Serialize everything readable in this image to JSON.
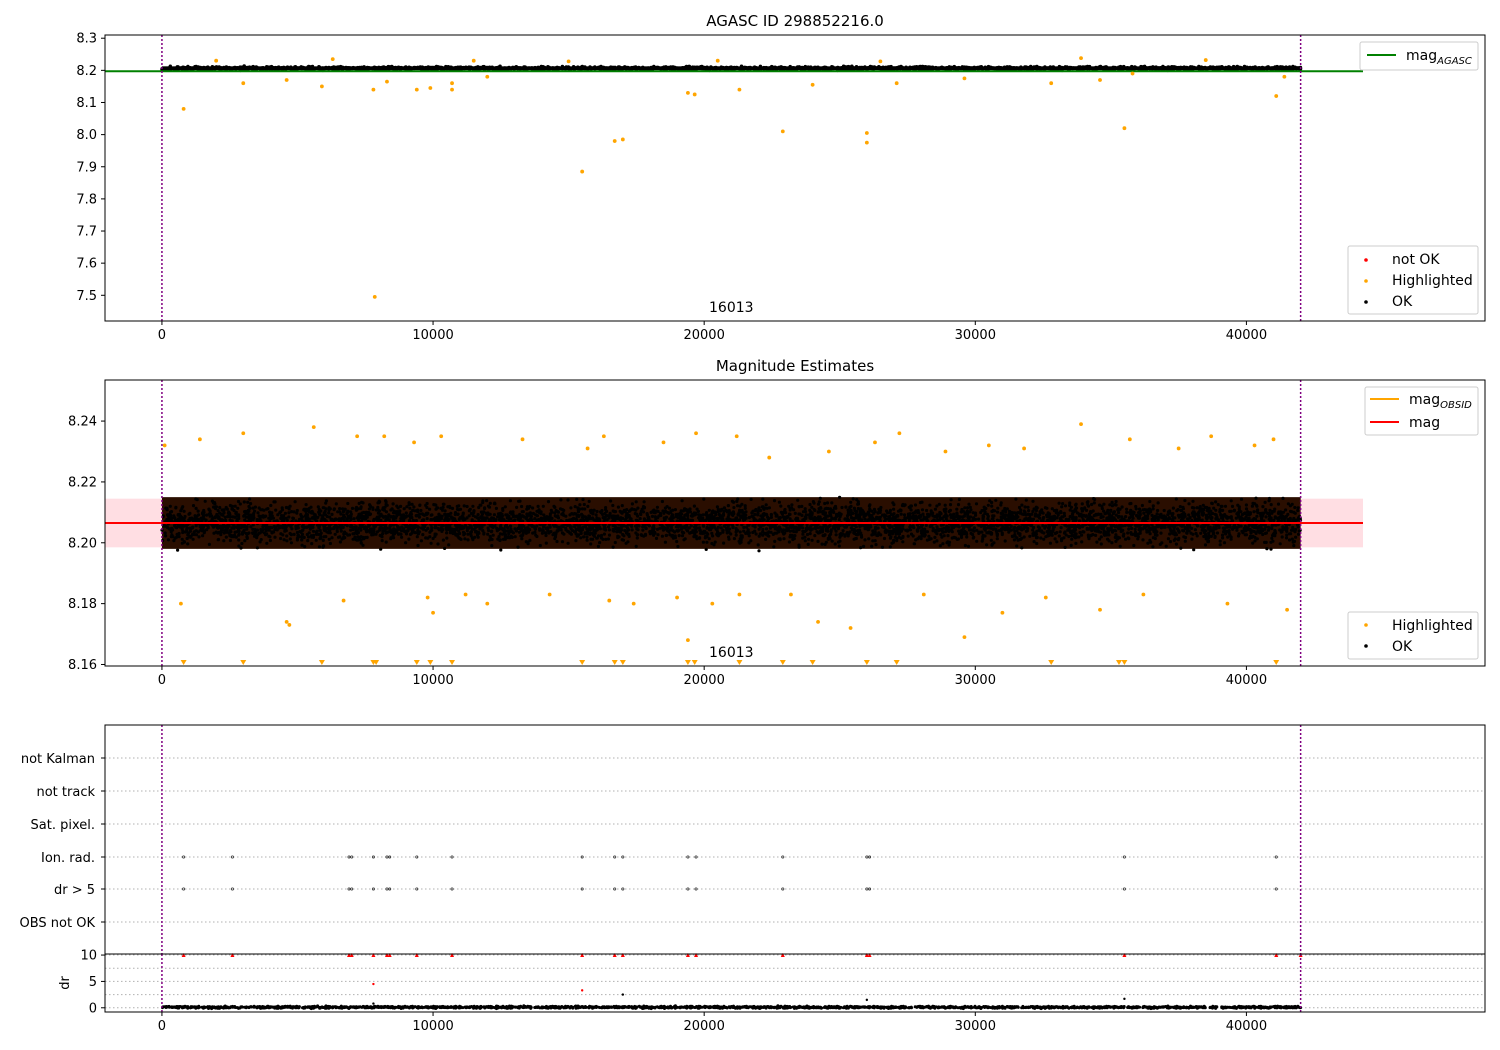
{
  "colors": {
    "ok": "#000000",
    "highlighted": "#ffa500",
    "not_ok": "#ff0000",
    "mag_agasc": "#008000",
    "mag_obsid": "#ffa500",
    "mag": "#ff0000",
    "band": "#ffb6c1",
    "obs_boundary": "#800080",
    "grid": "#b0b0b0"
  },
  "chart_data": [
    {
      "type": "scatter",
      "title": "AGASC ID 298852216.0",
      "xlim": [
        -2100,
        48800
      ],
      "ylim": [
        7.42,
        8.31
      ],
      "xticks": [
        0,
        10000,
        20000,
        30000,
        40000
      ],
      "yticks": [
        7.5,
        7.6,
        7.7,
        7.8,
        7.9,
        8.0,
        8.1,
        8.2,
        8.3
      ],
      "obs_boundaries": [
        0,
        42000
      ],
      "obsid_label": {
        "text": "16013",
        "x": 21000
      },
      "lines": [
        {
          "name": "mag_AGASC",
          "y": 8.197,
          "x_range": [
            -2100,
            44300
          ],
          "color": "#008000"
        }
      ],
      "ok_band": {
        "x_range": [
          0,
          42000
        ],
        "center": 8.2065,
        "spread": 0.0075
      },
      "highlighted_points": [
        {
          "x": 800,
          "y": 8.08
        },
        {
          "x": 3000,
          "y": 8.16
        },
        {
          "x": 4600,
          "y": 8.17
        },
        {
          "x": 5900,
          "y": 8.15
        },
        {
          "x": 7800,
          "y": 8.14
        },
        {
          "x": 7850,
          "y": 7.495
        },
        {
          "x": 8300,
          "y": 8.165
        },
        {
          "x": 9400,
          "y": 8.14
        },
        {
          "x": 9900,
          "y": 8.145
        },
        {
          "x": 10700,
          "y": 8.14
        },
        {
          "x": 10700,
          "y": 8.16
        },
        {
          "x": 12000,
          "y": 8.18
        },
        {
          "x": 15500,
          "y": 7.885
        },
        {
          "x": 16700,
          "y": 7.98
        },
        {
          "x": 17000,
          "y": 7.985
        },
        {
          "x": 19400,
          "y": 8.13
        },
        {
          "x": 19650,
          "y": 8.125
        },
        {
          "x": 21300,
          "y": 8.14
        },
        {
          "x": 22900,
          "y": 8.01
        },
        {
          "x": 24000,
          "y": 8.155
        },
        {
          "x": 26000,
          "y": 8.005
        },
        {
          "x": 26000,
          "y": 7.975
        },
        {
          "x": 27100,
          "y": 8.16
        },
        {
          "x": 29600,
          "y": 8.175
        },
        {
          "x": 32800,
          "y": 8.16
        },
        {
          "x": 34600,
          "y": 8.17
        },
        {
          "x": 35500,
          "y": 8.02
        },
        {
          "x": 35800,
          "y": 8.19
        },
        {
          "x": 41100,
          "y": 8.12
        },
        {
          "x": 41400,
          "y": 8.18
        },
        {
          "x": 2000,
          "y": 8.23
        },
        {
          "x": 6300,
          "y": 8.235
        },
        {
          "x": 11500,
          "y": 8.23
        },
        {
          "x": 15000,
          "y": 8.228
        },
        {
          "x": 20500,
          "y": 8.23
        },
        {
          "x": 26500,
          "y": 8.228
        },
        {
          "x": 33900,
          "y": 8.238
        },
        {
          "x": 38500,
          "y": 8.232
        }
      ],
      "not_ok_points": [],
      "legends": [
        {
          "position": "upper-right",
          "entries": [
            {
              "label": "mag",
              "sub": "AGASC",
              "kind": "line",
              "color": "#008000"
            }
          ]
        },
        {
          "position": "lower-right",
          "entries": [
            {
              "label": "not OK",
              "kind": "dot",
              "color": "#ff0000"
            },
            {
              "label": "Highlighted",
              "kind": "dot",
              "color": "#ffa500"
            },
            {
              "label": "OK",
              "kind": "dot",
              "color": "#000000"
            }
          ]
        }
      ]
    },
    {
      "type": "scatter",
      "title": "Magnitude Estimates",
      "xlim": [
        -2100,
        48800
      ],
      "ylim": [
        8.1595,
        8.2535
      ],
      "xticks": [
        0,
        10000,
        20000,
        30000,
        40000
      ],
      "yticks": [
        8.16,
        8.18,
        8.2,
        8.22,
        8.24
      ],
      "obs_boundaries": [
        0,
        42000
      ],
      "obsid_label": {
        "text": "16013",
        "x": 21000
      },
      "lines": [
        {
          "name": "mag",
          "y": 8.2065,
          "x_range": [
            -2100,
            44300
          ],
          "color": "#ff0000"
        }
      ],
      "shaded_band": {
        "y_range": [
          8.1985,
          8.2145
        ],
        "x_range": [
          -2100,
          44300
        ]
      },
      "ok_band": {
        "x_range": [
          0,
          42000
        ],
        "center": 8.2065,
        "spread": 0.0095
      },
      "highlighted_points": [
        {
          "x": 100,
          "y": 8.232
        },
        {
          "x": 700,
          "y": 8.18
        },
        {
          "x": 1400,
          "y": 8.234
        },
        {
          "x": 3000,
          "y": 8.236
        },
        {
          "x": 4600,
          "y": 8.174
        },
        {
          "x": 4700,
          "y": 8.173
        },
        {
          "x": 5600,
          "y": 8.238
        },
        {
          "x": 6700,
          "y": 8.181
        },
        {
          "x": 7200,
          "y": 8.235
        },
        {
          "x": 8200,
          "y": 8.235
        },
        {
          "x": 9300,
          "y": 8.233
        },
        {
          "x": 9800,
          "y": 8.182
        },
        {
          "x": 10000,
          "y": 8.177
        },
        {
          "x": 10300,
          "y": 8.235
        },
        {
          "x": 11200,
          "y": 8.183
        },
        {
          "x": 12000,
          "y": 8.18
        },
        {
          "x": 13300,
          "y": 8.234
        },
        {
          "x": 14300,
          "y": 8.183
        },
        {
          "x": 15700,
          "y": 8.231
        },
        {
          "x": 16500,
          "y": 8.181
        },
        {
          "x": 16300,
          "y": 8.235
        },
        {
          "x": 17400,
          "y": 8.18
        },
        {
          "x": 18500,
          "y": 8.233
        },
        {
          "x": 19000,
          "y": 8.182
        },
        {
          "x": 19400,
          "y": 8.168
        },
        {
          "x": 19700,
          "y": 8.236
        },
        {
          "x": 20300,
          "y": 8.18
        },
        {
          "x": 21200,
          "y": 8.235
        },
        {
          "x": 21300,
          "y": 8.183
        },
        {
          "x": 22400,
          "y": 8.228
        },
        {
          "x": 23200,
          "y": 8.183
        },
        {
          "x": 24200,
          "y": 8.174
        },
        {
          "x": 24600,
          "y": 8.23
        },
        {
          "x": 25400,
          "y": 8.172
        },
        {
          "x": 26300,
          "y": 8.233
        },
        {
          "x": 27200,
          "y": 8.236
        },
        {
          "x": 28100,
          "y": 8.183
        },
        {
          "x": 28900,
          "y": 8.23
        },
        {
          "x": 29600,
          "y": 8.169
        },
        {
          "x": 30500,
          "y": 8.232
        },
        {
          "x": 31000,
          "y": 8.177
        },
        {
          "x": 31800,
          "y": 8.231
        },
        {
          "x": 32600,
          "y": 8.182
        },
        {
          "x": 33900,
          "y": 8.239
        },
        {
          "x": 34600,
          "y": 8.178
        },
        {
          "x": 35700,
          "y": 8.234
        },
        {
          "x": 36200,
          "y": 8.183
        },
        {
          "x": 37500,
          "y": 8.231
        },
        {
          "x": 38700,
          "y": 8.235
        },
        {
          "x": 39300,
          "y": 8.18
        },
        {
          "x": 40300,
          "y": 8.232
        },
        {
          "x": 41000,
          "y": 8.234
        },
        {
          "x": 41500,
          "y": 8.178
        }
      ],
      "clipped_markers_x": [
        800,
        3000,
        5900,
        7800,
        7900,
        9400,
        9900,
        10700,
        15500,
        16700,
        17000,
        19400,
        19650,
        21300,
        22900,
        24000,
        26000,
        27100,
        32800,
        35300,
        35500,
        41100
      ],
      "legends": [
        {
          "position": "upper-right",
          "entries": [
            {
              "label": "mag",
              "sub": "OBSID",
              "kind": "line",
              "color": "#ffa500"
            },
            {
              "label": "mag",
              "kind": "line",
              "color": "#ff0000"
            }
          ]
        },
        {
          "position": "lower-right",
          "entries": [
            {
              "label": "Highlighted",
              "kind": "dot",
              "color": "#ffa500"
            },
            {
              "label": "OK",
              "kind": "dot",
              "color": "#000000"
            }
          ]
        }
      ]
    },
    {
      "type": "scatter",
      "title": "",
      "xlim": [
        -2100,
        48800
      ],
      "categories": [
        "not Kalman",
        "not track",
        "Sat. pixel.",
        "Ion. rad.",
        "dr > 5",
        "OBS not OK"
      ],
      "obs_boundaries": [
        0,
        42000
      ],
      "flag_points": {
        "Ion. rad.": [
          800,
          2600,
          6900,
          7000,
          7800,
          8300,
          8400,
          9400,
          10700,
          15500,
          16700,
          17000,
          19400,
          19700,
          22900,
          26000,
          26100,
          35500,
          41100
        ],
        "dr > 5": [
          800,
          2600,
          6900,
          7000,
          7800,
          8300,
          8400,
          9400,
          10700,
          15500,
          16700,
          17000,
          19400,
          19700,
          22900,
          26000,
          26100,
          35500,
          41100
        ]
      }
    },
    {
      "type": "scatter",
      "title": "",
      "ylabel": "dr",
      "xlim": [
        -2100,
        48800
      ],
      "ylim": [
        -0.8,
        10.2
      ],
      "xticks": [
        0,
        10000,
        20000,
        30000,
        40000
      ],
      "yticks": [
        0,
        5,
        10
      ],
      "obs_boundaries": [
        0,
        42000
      ],
      "capped_points": [
        {
          "x": 800,
          "y": 10
        },
        {
          "x": 2600,
          "y": 10
        },
        {
          "x": 6900,
          "y": 10
        },
        {
          "x": 7000,
          "y": 10
        },
        {
          "x": 7800,
          "y": 10
        },
        {
          "x": 8300,
          "y": 10
        },
        {
          "x": 8400,
          "y": 10
        },
        {
          "x": 9400,
          "y": 10
        },
        {
          "x": 10700,
          "y": 10
        },
        {
          "x": 15500,
          "y": 10
        },
        {
          "x": 16700,
          "y": 10
        },
        {
          "x": 17000,
          "y": 10
        },
        {
          "x": 19400,
          "y": 10
        },
        {
          "x": 19700,
          "y": 10
        },
        {
          "x": 22900,
          "y": 10
        },
        {
          "x": 26000,
          "y": 10
        },
        {
          "x": 26100,
          "y": 10
        },
        {
          "x": 35500,
          "y": 10
        },
        {
          "x": 41100,
          "y": 10
        },
        {
          "x": 42000,
          "y": 10
        }
      ],
      "not_ok_points": [
        {
          "x": 7800,
          "y": 4.5
        },
        {
          "x": 15500,
          "y": 3.3
        }
      ],
      "ok_points_extra": [
        {
          "x": 17000,
          "y": 2.5
        },
        {
          "x": 26000,
          "y": 1.5
        },
        {
          "x": 35500,
          "y": 1.7
        },
        {
          "x": 7800,
          "y": 0.8
        }
      ],
      "ok_band": {
        "x_range": [
          0,
          42000
        ],
        "center": 0.1,
        "spread": 0.3
      }
    }
  ]
}
